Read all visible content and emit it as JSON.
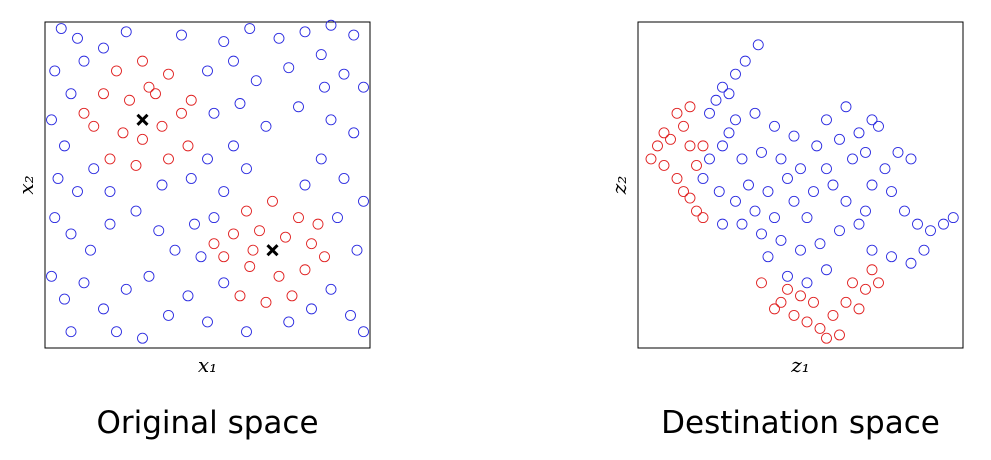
{
  "chart_data": [
    {
      "type": "scatter",
      "title": "Original space",
      "xlabel": "x₁",
      "ylabel": "x₂",
      "xlim": [
        0,
        100
      ],
      "ylim": [
        0,
        100
      ],
      "series": [
        {
          "color": "#2a2ae0",
          "marker": "o",
          "x": [
            5,
            10,
            18,
            25,
            42,
            55,
            63,
            72,
            80,
            88,
            95,
            3,
            8,
            50,
            58,
            65,
            75,
            85,
            92,
            98,
            2,
            6,
            52,
            60,
            68,
            78,
            88,
            95,
            4,
            10,
            15,
            45,
            50,
            55,
            62,
            85,
            92,
            98,
            3,
            8,
            14,
            20,
            28,
            35,
            40,
            46,
            90,
            96,
            2,
            6,
            12,
            18,
            25,
            32,
            38,
            44,
            50,
            55,
            62,
            75,
            82,
            88,
            94,
            98,
            30,
            22,
            8,
            48,
            52,
            58,
            80,
            20,
            36,
            86,
            12
          ],
          "y": [
            98,
            95,
            92,
            97,
            96,
            94,
            98,
            95,
            97,
            99,
            96,
            85,
            78,
            85,
            88,
            82,
            86,
            90,
            84,
            80,
            70,
            62,
            72,
            75,
            68,
            74,
            70,
            66,
            52,
            48,
            55,
            52,
            58,
            48,
            55,
            58,
            52,
            45,
            40,
            35,
            30,
            38,
            42,
            36,
            30,
            38,
            40,
            30,
            22,
            15,
            20,
            12,
            18,
            22,
            10,
            16,
            8,
            20,
            5,
            8,
            12,
            18,
            10,
            5,
            3,
            5,
            5,
            28,
            40,
            62,
            50,
            48,
            50,
            80,
            88
          ]
        },
        {
          "color": "#e02020",
          "marker": "o",
          "x": [
            22,
            30,
            38,
            18,
            26,
            34,
            42,
            15,
            24,
            30,
            36,
            44,
            20,
            28,
            38,
            32,
            45,
            12,
            62,
            70,
            78,
            58,
            66,
            74,
            82,
            55,
            63,
            72,
            80,
            86,
            60,
            68,
            76,
            64,
            84,
            52
          ],
          "y": [
            85,
            88,
            84,
            78,
            76,
            78,
            72,
            68,
            66,
            64,
            68,
            62,
            58,
            56,
            58,
            80,
            76,
            72,
            42,
            45,
            40,
            35,
            36,
            34,
            32,
            28,
            25,
            22,
            24,
            28,
            16,
            14,
            16,
            30,
            38,
            32
          ]
        },
        {
          "color": "#000000",
          "marker": "x",
          "x": [
            30,
            70
          ],
          "y": [
            70,
            30
          ]
        }
      ]
    },
    {
      "type": "scatter",
      "title": "Destination space",
      "xlabel": "z₁",
      "ylabel": "z₂",
      "xlim": [
        0,
        100
      ],
      "ylim": [
        0,
        100
      ],
      "series": [
        {
          "color": "#2a2ae0",
          "marker": "o",
          "x": [
            37,
            33,
            30,
            26,
            24,
            28,
            22,
            30,
            36,
            42,
            48,
            55,
            62,
            68,
            72,
            74,
            66,
            58,
            50,
            44,
            38,
            32,
            26,
            22,
            20,
            25,
            30,
            36,
            42,
            48,
            54,
            60,
            64,
            70,
            62,
            56,
            50,
            44,
            38,
            32,
            26,
            40,
            46,
            52,
            58,
            68,
            72,
            76,
            80,
            84,
            78,
            82,
            86,
            90,
            94,
            97,
            88,
            84,
            78,
            72,
            46,
            52,
            34,
            28,
            58,
            64,
            70,
            40
          ],
          "y": [
            93,
            88,
            84,
            80,
            76,
            78,
            72,
            70,
            72,
            68,
            65,
            62,
            64,
            66,
            70,
            68,
            58,
            55,
            55,
            58,
            60,
            58,
            62,
            58,
            52,
            48,
            45,
            42,
            40,
            45,
            48,
            50,
            45,
            42,
            36,
            32,
            30,
            33,
            35,
            38,
            38,
            28,
            22,
            20,
            24,
            38,
            50,
            55,
            60,
            58,
            48,
            42,
            38,
            36,
            38,
            40,
            30,
            26,
            28,
            30,
            52,
            40,
            50,
            66,
            70,
            74,
            60,
            48
          ]
        },
        {
          "color": "#e02020",
          "marker": "o",
          "x": [
            4,
            6,
            8,
            12,
            16,
            14,
            10,
            8,
            12,
            16,
            18,
            20,
            14,
            18,
            20,
            16,
            38,
            44,
            48,
            52,
            56,
            58,
            62,
            60,
            54,
            64,
            68,
            66,
            70,
            72,
            74,
            50,
            46,
            42
          ],
          "y": [
            58,
            62,
            66,
            72,
            74,
            68,
            64,
            56,
            52,
            46,
            42,
            40,
            48,
            56,
            62,
            62,
            20,
            14,
            10,
            8,
            6,
            3,
            4,
            10,
            14,
            14,
            12,
            20,
            18,
            24,
            20,
            16,
            18,
            12
          ]
        }
      ]
    }
  ]
}
